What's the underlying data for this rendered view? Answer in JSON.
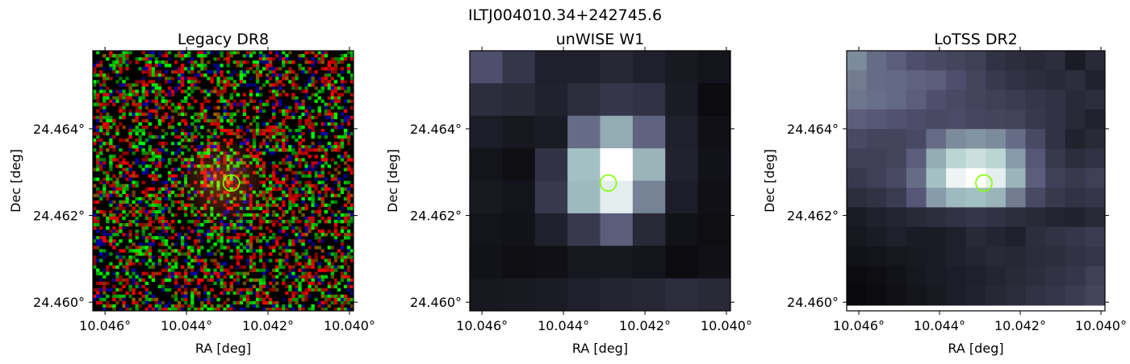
{
  "figure": {
    "title": "ILTJ004010.34+242745.6"
  },
  "marker": {
    "ra": 10.0429,
    "dec": 24.46275,
    "color": "#7fff00"
  },
  "chart_data": [
    {
      "type": "heatmap",
      "title": "Legacy DR8",
      "xlabel": "RA [deg]",
      "ylabel": "Dec [deg]",
      "xlim": [
        10.0463,
        10.0399
      ],
      "ylim": [
        24.4598,
        24.4658
      ],
      "xticks": [
        10.046,
        10.044,
        10.042,
        10.04
      ],
      "xtick_labels": [
        "10.046°",
        "10.044°",
        "10.042°",
        "10.040°"
      ],
      "yticks": [
        24.46,
        24.462,
        24.464
      ],
      "ytick_labels": [
        "24.460°",
        "24.462°",
        "24.464°"
      ],
      "colormap": "rgb-noise",
      "show_ylabel": true
    },
    {
      "type": "heatmap",
      "title": "unWISE W1",
      "xlabel": "RA [deg]",
      "ylabel": "Dec [deg]",
      "xlim": [
        10.0463,
        10.0399
      ],
      "ylim": [
        24.4598,
        24.4658
      ],
      "xticks": [
        10.046,
        10.044,
        10.042,
        10.04
      ],
      "xtick_labels": [
        "10.046°",
        "10.044°",
        "10.042°",
        "10.040°"
      ],
      "yticks": [
        24.46,
        24.462,
        24.464
      ],
      "ytick_labels": [
        "24.460°",
        "24.462°",
        "24.464°"
      ],
      "colormap": "bone",
      "grid": [
        [
          0.35,
          0.24,
          0.14,
          0.14,
          0.17,
          0.14,
          0.11,
          0.09
        ],
        [
          0.2,
          0.18,
          0.15,
          0.2,
          0.24,
          0.22,
          0.12,
          0.05
        ],
        [
          0.13,
          0.1,
          0.12,
          0.45,
          0.65,
          0.42,
          0.14,
          0.07
        ],
        [
          0.09,
          0.06,
          0.22,
          0.72,
          1.0,
          0.68,
          0.15,
          0.08
        ],
        [
          0.11,
          0.09,
          0.25,
          0.7,
          0.92,
          0.52,
          0.13,
          0.07
        ],
        [
          0.09,
          0.08,
          0.14,
          0.25,
          0.4,
          0.18,
          0.08,
          0.06
        ],
        [
          0.08,
          0.06,
          0.07,
          0.1,
          0.1,
          0.09,
          0.05,
          0.07
        ],
        [
          0.1,
          0.11,
          0.12,
          0.14,
          0.16,
          0.17,
          0.2,
          0.18
        ]
      ],
      "show_ylabel": true
    },
    {
      "type": "heatmap",
      "title": "LoTSS DR2",
      "xlabel": "RA [deg]",
      "ylabel": "Dec [deg]",
      "xlim": [
        10.0463,
        10.0399
      ],
      "ylim": [
        24.4598,
        24.4658
      ],
      "xticks": [
        10.046,
        10.044,
        10.042,
        10.04
      ],
      "xtick_labels": [
        "10.046°",
        "10.044°",
        "10.042°",
        "10.040°"
      ],
      "yticks": [
        24.46,
        24.462,
        24.464
      ],
      "ytick_labels": [
        "24.460°",
        "24.462°",
        "24.464°"
      ],
      "colormap": "bone",
      "grid": [
        [
          0.55,
          0.45,
          0.4,
          0.35,
          0.32,
          0.3,
          0.28,
          0.22,
          0.2,
          0.18,
          0.2,
          0.12,
          0.18
        ],
        [
          0.5,
          0.45,
          0.44,
          0.42,
          0.4,
          0.35,
          0.3,
          0.25,
          0.22,
          0.2,
          0.18,
          0.2,
          0.15
        ],
        [
          0.48,
          0.46,
          0.44,
          0.4,
          0.35,
          0.32,
          0.3,
          0.28,
          0.26,
          0.24,
          0.22,
          0.18,
          0.2
        ],
        [
          0.4,
          0.38,
          0.36,
          0.34,
          0.32,
          0.33,
          0.31,
          0.3,
          0.29,
          0.25,
          0.22,
          0.18,
          0.15
        ],
        [
          0.32,
          0.3,
          0.3,
          0.32,
          0.45,
          0.55,
          0.58,
          0.55,
          0.45,
          0.32,
          0.22,
          0.15,
          0.18
        ],
        [
          0.28,
          0.28,
          0.3,
          0.4,
          0.65,
          0.8,
          0.85,
          0.8,
          0.6,
          0.38,
          0.25,
          0.2,
          0.22
        ],
        [
          0.25,
          0.28,
          0.32,
          0.45,
          0.72,
          0.95,
          1.0,
          0.92,
          0.68,
          0.4,
          0.28,
          0.25,
          0.28
        ],
        [
          0.2,
          0.22,
          0.26,
          0.38,
          0.6,
          0.7,
          0.72,
          0.68,
          0.5,
          0.32,
          0.25,
          0.22,
          0.24
        ],
        [
          0.12,
          0.14,
          0.16,
          0.18,
          0.2,
          0.22,
          0.24,
          0.22,
          0.2,
          0.18,
          0.16,
          0.15,
          0.18
        ],
        [
          0.1,
          0.12,
          0.14,
          0.12,
          0.12,
          0.14,
          0.18,
          0.16,
          0.14,
          0.2,
          0.22,
          0.24,
          0.26
        ],
        [
          0.08,
          0.09,
          0.1,
          0.11,
          0.12,
          0.14,
          0.16,
          0.18,
          0.17,
          0.19,
          0.2,
          0.22,
          0.24
        ],
        [
          0.05,
          0.06,
          0.08,
          0.1,
          0.12,
          0.13,
          0.14,
          0.16,
          0.18,
          0.2,
          0.22,
          0.24,
          0.28
        ],
        [
          0.04,
          0.05,
          0.07,
          0.09,
          0.11,
          0.13,
          0.15,
          0.17,
          0.19,
          0.22,
          0.24,
          0.26,
          0.3
        ]
      ],
      "show_ylabel": true
    }
  ]
}
